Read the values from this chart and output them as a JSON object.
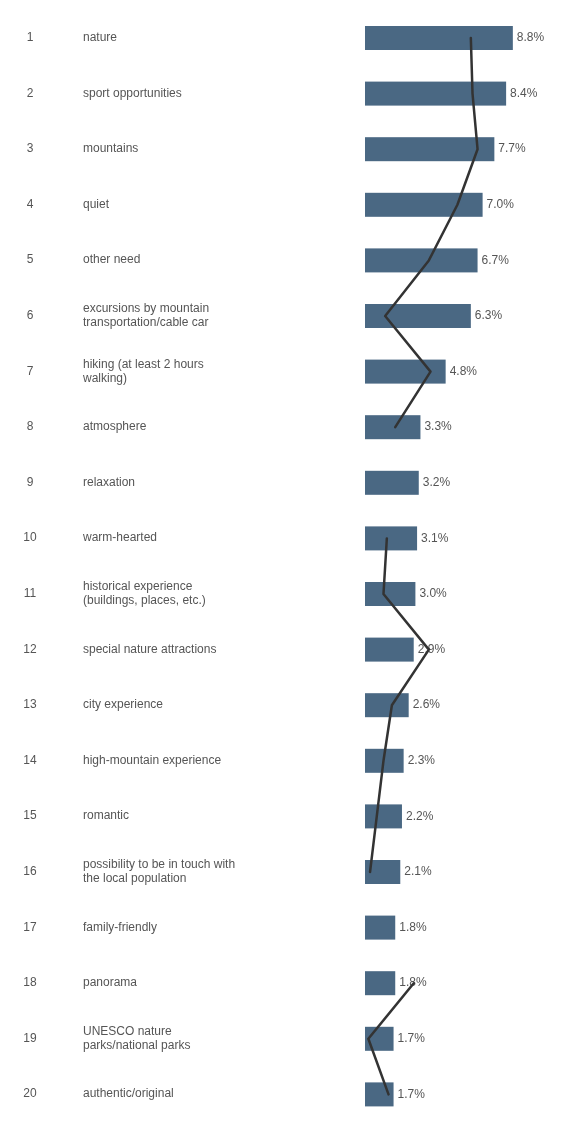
{
  "chart_data": {
    "type": "bar",
    "orientation": "horizontal",
    "categories": [
      "nature",
      "sport opportunities",
      "mountains",
      "quiet",
      "other need",
      "excursions by mountain\ntransportation/cable car",
      "hiking (at least 2 hours\nwalking)",
      "atmosphere",
      "relaxation",
      "warm-hearted",
      "historical experience\n(buildings, places, etc.)",
      "special nature attractions",
      "city experience",
      "high-mountain experience",
      "romantic",
      "possibility to be in touch with\nthe local population",
      "family-friendly",
      "panorama",
      "UNESCO nature\nparks/national parks",
      "authentic/original"
    ],
    "series": [
      {
        "color": "#4a6883",
        "values": [
          8.8,
          8.4,
          7.7,
          7.0,
          6.7,
          6.3,
          4.8,
          3.3,
          3.2,
          3.1,
          3.0,
          2.9,
          2.6,
          2.3,
          2.2,
          2.1,
          1.8,
          1.8,
          1.7,
          1.7
        ],
        "value_labels": [
          "8.8%",
          "8.4%",
          "7.7%",
          "7.0%",
          "6.7%",
          "6.3%",
          "4.8%",
          "3.3%",
          "3.2%",
          "3.1%",
          "3.0%",
          "2.9%",
          "2.6%",
          "2.3%",
          "2.2%",
          "2.1%",
          "1.8%",
          "1.8%",
          "1.7%",
          "1.7%"
        ]
      },
      {
        "type": "line",
        "color": "#333333",
        "values": [
          6.3,
          6.4,
          6.7,
          5.5,
          3.8,
          1.2,
          3.9,
          1.8,
          null,
          1.3,
          1.1,
          3.8,
          1.6,
          1.1,
          0.7,
          0.3,
          null,
          2.9,
          0.2,
          1.4
        ]
      }
    ],
    "annotations": [
      "1",
      "2",
      "3",
      "4",
      "5",
      "6",
      "7",
      "8",
      "9",
      "10",
      "11",
      "12",
      "13",
      "14",
      "15",
      "16",
      "17",
      "18",
      "19",
      "20"
    ]
  }
}
